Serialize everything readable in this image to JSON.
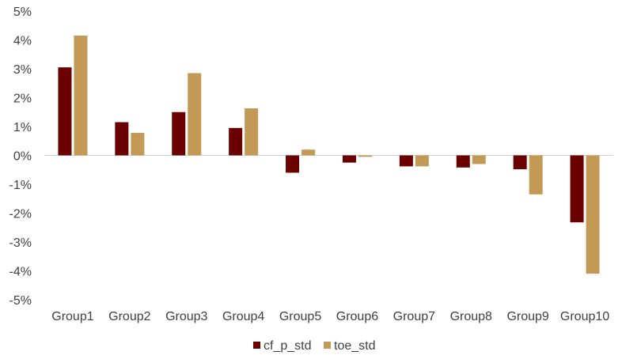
{
  "chart_data": {
    "type": "bar",
    "title": "",
    "xlabel": "",
    "ylabel": "",
    "categories": [
      "Group1",
      "Group2",
      "Group3",
      "Group4",
      "Group5",
      "Group6",
      "Group7",
      "Group8",
      "Group9",
      "Group10"
    ],
    "series": [
      {
        "name": "cf_p_std",
        "color": "#6b0000",
        "values": [
          3.05,
          1.15,
          1.5,
          0.95,
          -0.6,
          -0.25,
          -0.38,
          -0.42,
          -0.48,
          -2.32
        ]
      },
      {
        "name": "toe_std",
        "color": "#c39a55",
        "values": [
          4.15,
          0.78,
          2.85,
          1.63,
          0.2,
          -0.05,
          -0.38,
          -0.3,
          -1.35,
          -4.1
        ]
      }
    ],
    "ylim": [
      -5,
      5
    ],
    "yticks": [
      5,
      4,
      3,
      2,
      1,
      0,
      -1,
      -2,
      -3,
      -4,
      -5
    ],
    "ytick_labels": [
      "5%",
      "4%",
      "3%",
      "2%",
      "1%",
      "0%",
      "-1%",
      "-2%",
      "-3%",
      "-4%",
      "-5%"
    ],
    "grid": false,
    "legend_position": "bottom-center"
  }
}
